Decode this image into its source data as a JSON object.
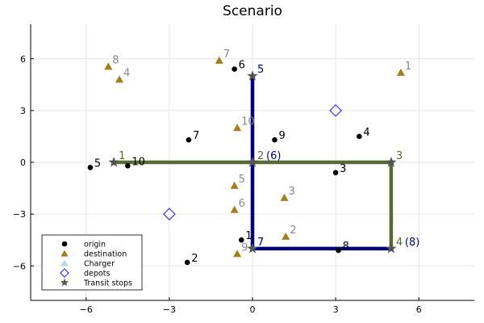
{
  "chart_data": {
    "type": "scatter",
    "title": "Scenario",
    "xlabel": "",
    "ylabel": "",
    "xlim": [
      -8,
      8
    ],
    "ylim": [
      -8,
      8
    ],
    "x_ticks": [
      -6,
      -3,
      0,
      3,
      6
    ],
    "y_ticks": [
      -6,
      -3,
      0,
      3,
      6
    ],
    "x_tick_labels": [
      "−6",
      "−3",
      "0",
      "3",
      "6"
    ],
    "y_tick_labels": [
      "−6",
      "−3",
      "0",
      "3",
      "6"
    ],
    "grid": true,
    "legend_position": "bottom-left",
    "legend": [
      {
        "label": "origin",
        "marker": "circle",
        "color": "#000000"
      },
      {
        "label": "destination",
        "marker": "triangle",
        "color": "#a87d12"
      },
      {
        "label": "Charger",
        "marker": "triangle",
        "color": "#add8e6"
      },
      {
        "label": "depots",
        "marker": "diamond",
        "color": "#3333ff"
      },
      {
        "label": "Transit stops",
        "marker": "star",
        "color": "#555555"
      }
    ],
    "routes": [
      {
        "color": "#000080",
        "points": [
          [
            0,
            5
          ],
          [
            0,
            0
          ],
          [
            0,
            -5
          ],
          [
            5,
            -5
          ]
        ]
      },
      {
        "color": "#556b2f",
        "points": [
          [
            -5,
            0
          ],
          [
            0,
            0
          ],
          [
            5,
            0
          ],
          [
            5,
            -5
          ]
        ]
      }
    ],
    "origins": [
      {
        "label": "1",
        "x": -0.4,
        "y": -4.5
      },
      {
        "label": "2",
        "x": -2.35,
        "y": -5.8
      },
      {
        "label": "3",
        "x": 3.0,
        "y": -0.6
      },
      {
        "label": "4",
        "x": 3.85,
        "y": 1.5
      },
      {
        "label": "5",
        "x": -5.85,
        "y": -0.3
      },
      {
        "label": "6",
        "x": -0.65,
        "y": 5.4
      },
      {
        "label": "7",
        "x": -2.3,
        "y": 1.3
      },
      {
        "label": "8",
        "x": 3.1,
        "y": -5.1
      },
      {
        "label": "9",
        "x": 0.8,
        "y": 1.3
      },
      {
        "label": "10",
        "x": -4.5,
        "y": -0.2
      }
    ],
    "destinations": [
      {
        "label": "1",
        "x": 5.35,
        "y": 5.2
      },
      {
        "label": "2",
        "x": 1.2,
        "y": -4.3
      },
      {
        "label": "3",
        "x": 1.15,
        "y": -2.05
      },
      {
        "label": "4",
        "x": -4.8,
        "y": 4.8
      },
      {
        "label": "5",
        "x": -0.65,
        "y": -1.35
      },
      {
        "label": "6",
        "x": -0.65,
        "y": -2.75
      },
      {
        "label": "7",
        "x": -1.2,
        "y": 5.9
      },
      {
        "label": "8",
        "x": -5.2,
        "y": 5.55
      },
      {
        "label": "9",
        "x": -0.55,
        "y": -5.3
      },
      {
        "label": "10",
        "x": -0.55,
        "y": 2.0
      }
    ],
    "depots": [
      {
        "x": 3.0,
        "y": 3.0
      },
      {
        "x": -3.0,
        "y": -3.0
      }
    ],
    "transit_stops": [
      {
        "label": "1",
        "x": -5,
        "y": 0,
        "capacity": ""
      },
      {
        "label": "2",
        "x": 0,
        "y": 0,
        "capacity": "(6)"
      },
      {
        "label": "3",
        "x": 5,
        "y": 0,
        "capacity": ""
      },
      {
        "label": "4",
        "x": 5,
        "y": -5,
        "capacity": "(8)"
      },
      {
        "label": "5",
        "x": 0,
        "y": 5,
        "capacity": ""
      },
      {
        "label": "7",
        "x": 0,
        "y": -5,
        "capacity": ""
      }
    ],
    "colors": {
      "origin": "#000000",
      "destination": "#a87d12",
      "destination_label": "#888888",
      "charger": "#add8e6",
      "depot": "#3333ff",
      "stop": "#555555",
      "stop_label_navy": "#000080",
      "stop_label_olive": "#556b2f"
    }
  }
}
